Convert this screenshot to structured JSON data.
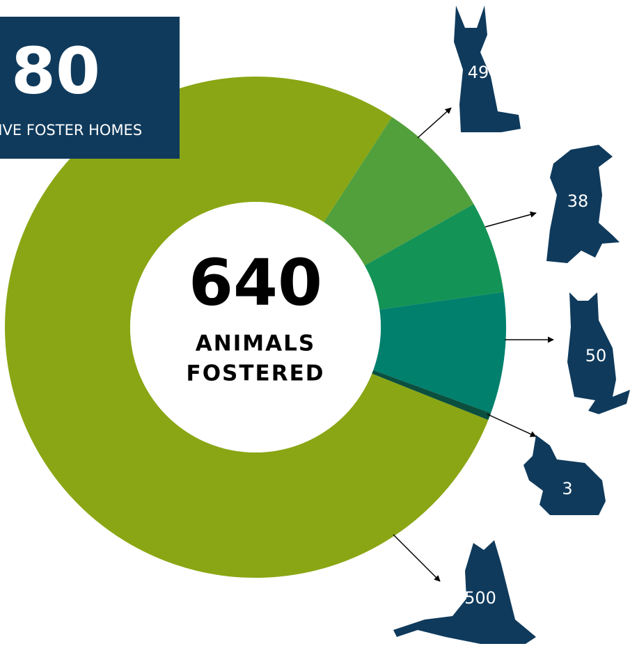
{
  "chart_data": {
    "type": "donut",
    "values": [
      49,
      38,
      50,
      3,
      500
    ],
    "colors": [
      "#52a03c",
      "#149356",
      "#00806d",
      "#0b4f3f",
      "#8aa614"
    ],
    "center_value": "640",
    "center_label": [
      "ANIMALS",
      "FOSTERED"
    ],
    "badge": {
      "value": "80",
      "label": "ACTIVE FOSTER HOMES"
    }
  }
}
